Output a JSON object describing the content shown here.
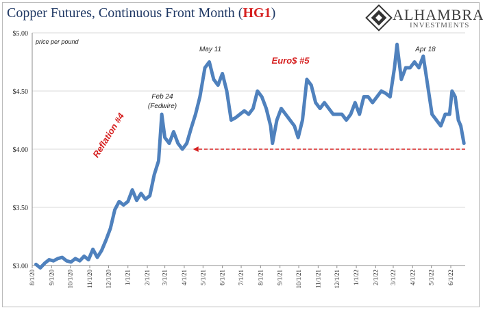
{
  "header": {
    "title_main": "Copper Futures, Continuous Front Month (",
    "title_ticker": "HG1",
    "title_end": ")",
    "logo_name": "ALHAMBRA",
    "logo_sub": "INVESTMENTS"
  },
  "colors": {
    "series": "#4f81bd",
    "title": "#1f3864",
    "accent": "#d62020",
    "grid": "#d9d9d9"
  },
  "chart_data": {
    "type": "line",
    "ylabel": "price per pound",
    "ylim": [
      3.0,
      5.0
    ],
    "y_ticks": [
      {
        "v": 3.0,
        "label": "$3.00"
      },
      {
        "v": 3.5,
        "label": "$3.50"
      },
      {
        "v": 4.0,
        "label": "$4.00"
      },
      {
        "v": 4.5,
        "label": "$4.50"
      },
      {
        "v": 5.0,
        "label": "$5.00"
      }
    ],
    "xlim": [
      "2020-08-01",
      "2022-06-24"
    ],
    "x_ticks": [
      {
        "d": "2020-08-01",
        "label": "8/1/20"
      },
      {
        "d": "2020-09-01",
        "label": "9/1/20"
      },
      {
        "d": "2020-10-01",
        "label": "10/1/20"
      },
      {
        "d": "2020-11-01",
        "label": "11/1/20"
      },
      {
        "d": "2020-12-01",
        "label": "12/1/20"
      },
      {
        "d": "2021-01-01",
        "label": "1/1/21"
      },
      {
        "d": "2021-02-01",
        "label": "2/1/21"
      },
      {
        "d": "2021-03-01",
        "label": "3/1/21"
      },
      {
        "d": "2021-04-01",
        "label": "4/1/21"
      },
      {
        "d": "2021-05-01",
        "label": "5/1/21"
      },
      {
        "d": "2021-06-01",
        "label": "6/1/21"
      },
      {
        "d": "2021-07-01",
        "label": "7/1/21"
      },
      {
        "d": "2021-08-01",
        "label": "8/1/21"
      },
      {
        "d": "2021-09-01",
        "label": "9/1/21"
      },
      {
        "d": "2021-10-01",
        "label": "10/1/21"
      },
      {
        "d": "2021-11-01",
        "label": "11/1/21"
      },
      {
        "d": "2021-12-01",
        "label": "12/1/21"
      },
      {
        "d": "2022-01-01",
        "label": "1/1/22"
      },
      {
        "d": "2022-02-01",
        "label": "2/1/22"
      },
      {
        "d": "2022-03-01",
        "label": "3/1/22"
      },
      {
        "d": "2022-04-01",
        "label": "4/1/22"
      },
      {
        "d": "2022-05-01",
        "label": "5/1/22"
      },
      {
        "d": "2022-06-01",
        "label": "6/1/22"
      }
    ],
    "series": [
      {
        "points": [
          [
            "2020-08-07",
            3.01
          ],
          [
            "2020-08-14",
            2.98
          ],
          [
            "2020-08-21",
            3.02
          ],
          [
            "2020-08-28",
            3.05
          ],
          [
            "2020-09-04",
            3.04
          ],
          [
            "2020-09-11",
            3.06
          ],
          [
            "2020-09-18",
            3.07
          ],
          [
            "2020-09-25",
            3.04
          ],
          [
            "2020-10-02",
            3.03
          ],
          [
            "2020-10-09",
            3.06
          ],
          [
            "2020-10-16",
            3.04
          ],
          [
            "2020-10-23",
            3.08
          ],
          [
            "2020-10-30",
            3.05
          ],
          [
            "2020-11-06",
            3.14
          ],
          [
            "2020-11-13",
            3.07
          ],
          [
            "2020-11-20",
            3.13
          ],
          [
            "2020-11-27",
            3.22
          ],
          [
            "2020-12-04",
            3.32
          ],
          [
            "2020-12-11",
            3.48
          ],
          [
            "2020-12-18",
            3.55
          ],
          [
            "2020-12-25",
            3.52
          ],
          [
            "2021-01-01",
            3.55
          ],
          [
            "2021-01-08",
            3.65
          ],
          [
            "2021-01-15",
            3.56
          ],
          [
            "2021-01-22",
            3.62
          ],
          [
            "2021-01-29",
            3.57
          ],
          [
            "2021-02-05",
            3.6
          ],
          [
            "2021-02-12",
            3.78
          ],
          [
            "2021-02-19",
            3.9
          ],
          [
            "2021-02-24",
            4.3
          ],
          [
            "2021-03-01",
            4.1
          ],
          [
            "2021-03-08",
            4.05
          ],
          [
            "2021-03-15",
            4.15
          ],
          [
            "2021-03-22",
            4.05
          ],
          [
            "2021-03-29",
            4.0
          ],
          [
            "2021-04-05",
            4.05
          ],
          [
            "2021-04-12",
            4.18
          ],
          [
            "2021-04-19",
            4.3
          ],
          [
            "2021-04-26",
            4.45
          ],
          [
            "2021-05-04",
            4.7
          ],
          [
            "2021-05-11",
            4.75
          ],
          [
            "2021-05-18",
            4.6
          ],
          [
            "2021-05-25",
            4.55
          ],
          [
            "2021-06-01",
            4.65
          ],
          [
            "2021-06-08",
            4.5
          ],
          [
            "2021-06-15",
            4.25
          ],
          [
            "2021-06-22",
            4.27
          ],
          [
            "2021-06-29",
            4.3
          ],
          [
            "2021-07-06",
            4.33
          ],
          [
            "2021-07-13",
            4.3
          ],
          [
            "2021-07-20",
            4.35
          ],
          [
            "2021-07-27",
            4.5
          ],
          [
            "2021-08-03",
            4.45
          ],
          [
            "2021-08-10",
            4.35
          ],
          [
            "2021-08-17",
            4.2
          ],
          [
            "2021-08-20",
            4.05
          ],
          [
            "2021-08-27",
            4.25
          ],
          [
            "2021-09-03",
            4.35
          ],
          [
            "2021-09-10",
            4.3
          ],
          [
            "2021-09-17",
            4.25
          ],
          [
            "2021-09-24",
            4.2
          ],
          [
            "2021-09-30",
            4.1
          ],
          [
            "2021-10-07",
            4.25
          ],
          [
            "2021-10-14",
            4.6
          ],
          [
            "2021-10-21",
            4.55
          ],
          [
            "2021-10-28",
            4.4
          ],
          [
            "2021-11-04",
            4.35
          ],
          [
            "2021-11-11",
            4.4
          ],
          [
            "2021-11-18",
            4.35
          ],
          [
            "2021-11-25",
            4.3
          ],
          [
            "2021-12-02",
            4.3
          ],
          [
            "2021-12-09",
            4.3
          ],
          [
            "2021-12-16",
            4.25
          ],
          [
            "2021-12-23",
            4.3
          ],
          [
            "2021-12-30",
            4.4
          ],
          [
            "2022-01-06",
            4.3
          ],
          [
            "2022-01-13",
            4.45
          ],
          [
            "2022-01-20",
            4.45
          ],
          [
            "2022-01-27",
            4.4
          ],
          [
            "2022-02-03",
            4.45
          ],
          [
            "2022-02-10",
            4.5
          ],
          [
            "2022-02-17",
            4.48
          ],
          [
            "2022-02-24",
            4.45
          ],
          [
            "2022-03-03",
            4.7
          ],
          [
            "2022-03-07",
            4.9
          ],
          [
            "2022-03-14",
            4.6
          ],
          [
            "2022-03-21",
            4.7
          ],
          [
            "2022-03-28",
            4.7
          ],
          [
            "2022-04-04",
            4.75
          ],
          [
            "2022-04-11",
            4.7
          ],
          [
            "2022-04-18",
            4.8
          ],
          [
            "2022-04-25",
            4.55
          ],
          [
            "2022-05-02",
            4.3
          ],
          [
            "2022-05-09",
            4.25
          ],
          [
            "2022-05-16",
            4.2
          ],
          [
            "2022-05-23",
            4.3
          ],
          [
            "2022-05-30",
            4.3
          ],
          [
            "2022-06-03",
            4.5
          ],
          [
            "2022-06-08",
            4.45
          ],
          [
            "2022-06-13",
            4.25
          ],
          [
            "2022-06-17",
            4.2
          ],
          [
            "2022-06-22",
            4.05
          ]
        ]
      }
    ],
    "annotations": {
      "feb24_line1": "Feb 24",
      "feb24_line2": "(Fedwire)",
      "may11": "May 11",
      "apr18": "Apr 18",
      "reflation": "Reflation #4",
      "euro": "Euro$ #5"
    },
    "reference_arrow": {
      "y": 4.0,
      "from": "2022-06-24",
      "to": "2021-04-15"
    }
  }
}
